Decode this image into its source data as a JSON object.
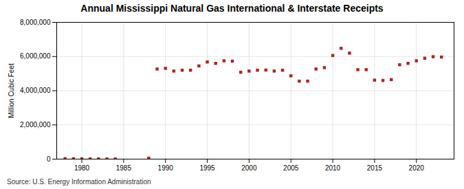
{
  "chart_data": {
    "type": "scatter",
    "title": "Annual Mississippi Natural Gas International & Interstate Receipts",
    "ylabel": "Million Cubic Feet",
    "source": "Source: U.S. Energy Information Administration",
    "color": "#b22222",
    "marker": "square",
    "x": [
      1978,
      1979,
      1980,
      1981,
      1982,
      1983,
      1984,
      1988,
      1989,
      1990,
      1991,
      1992,
      1993,
      1994,
      1995,
      1996,
      1997,
      1998,
      1999,
      2000,
      2001,
      2002,
      2003,
      2004,
      2005,
      2006,
      2007,
      2008,
      2009,
      2010,
      2011,
      2012,
      2013,
      2014,
      2015,
      2016,
      2017,
      2018,
      2019,
      2020,
      2021,
      2022,
      2023
    ],
    "values": [
      25000,
      20000,
      15000,
      12000,
      10000,
      8000,
      7000,
      55000,
      5270000,
      5310000,
      5150000,
      5200000,
      5200000,
      5450000,
      5680000,
      5600000,
      5750000,
      5730000,
      5080000,
      5150000,
      5200000,
      5210000,
      5150000,
      5200000,
      4870000,
      4560000,
      4560000,
      5270000,
      5350000,
      6060000,
      6480000,
      6200000,
      5230000,
      5230000,
      4620000,
      4600000,
      4650000,
      5520000,
      5600000,
      5750000,
      5900000,
      5990000,
      5970000
    ],
    "xlim": [
      1977,
      2024.5
    ],
    "ylim": [
      0,
      8000000
    ],
    "xticks": [
      1980,
      1985,
      1990,
      1995,
      2000,
      2005,
      2010,
      2015,
      2020
    ],
    "yticks": [
      0,
      {
        "value": 2000000,
        "label": "2,000,000"
      },
      {
        "value": 4000000,
        "label": "4,000,000"
      },
      {
        "value": 6000000,
        "label": "6,000,000"
      },
      {
        "value": 8000000,
        "label": "8,000,000"
      }
    ],
    "grid": true
  }
}
